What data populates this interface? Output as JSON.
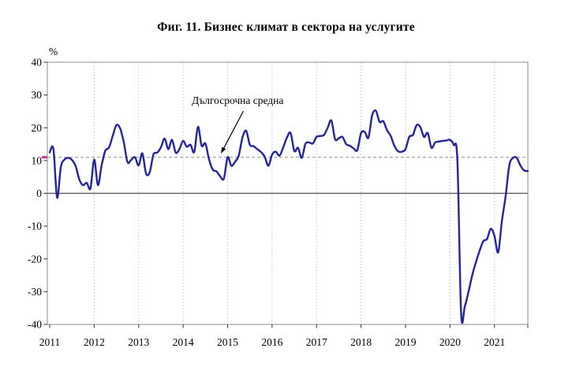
{
  "chart_data": {
    "type": "line",
    "title": "Фиг. 11. Бизнес климат в сектора на услугите",
    "ylabel": "%",
    "annotation": "Дългосрочна средна",
    "x_tick_labels": [
      "2011",
      "2012",
      "2013",
      "2014",
      "2015",
      "2016",
      "2017",
      "2018",
      "2019",
      "2020",
      "2021"
    ],
    "y_ticks": [
      40,
      30,
      20,
      10,
      0,
      -10,
      -20,
      -30,
      -40
    ],
    "ylim": [
      -40,
      40
    ],
    "x_frequency": "monthly",
    "x_range": {
      "start": "2011-01",
      "end": "2021-10"
    },
    "long_term_average": 11,
    "grid": {
      "vertical": "dotted",
      "horizontal": "none"
    },
    "values": [
      12.5,
      13.5,
      -1.3,
      8.0,
      10.3,
      10.8,
      10.2,
      8.3,
      4.2,
      2.5,
      3.2,
      1.5,
      10.3,
      2.5,
      8.5,
      13.0,
      14.0,
      17.5,
      20.8,
      19.8,
      15.5,
      9.5,
      10.2,
      11.0,
      8.5,
      12.2,
      6.0,
      6.5,
      11.9,
      12.4,
      14.0,
      16.7,
      13.5,
      16.3,
      12.4,
      13.5,
      16.0,
      14.2,
      14.8,
      12.6,
      20.3,
      14.5,
      15.2,
      10.3,
      7.2,
      6.7,
      5.2,
      4.5,
      11.0,
      8.4,
      9.6,
      11.5,
      17.0,
      19.1,
      14.8,
      14.4,
      13.5,
      12.6,
      11.2,
      8.4,
      11.8,
      12.7,
      11.5,
      14.0,
      17.0,
      18.4,
      12.9,
      13.9,
      10.8,
      15.1,
      15.5,
      15.2,
      17.2,
      17.5,
      17.8,
      20.0,
      22.2,
      16.5,
      16.8,
      17.2,
      15.0,
      14.5,
      13.7,
      13.2,
      18.4,
      18.7,
      17.0,
      23.8,
      25.2,
      21.8,
      22.0,
      19.3,
      17.5,
      14.5,
      12.8,
      12.7,
      13.5,
      17.2,
      17.8,
      20.8,
      20.2,
      17.2,
      18.4,
      13.9,
      15.5,
      15.8,
      16.0,
      16.1,
      16.3,
      14.8,
      10.0,
      -36.5,
      -34.5,
      -30.0,
      -25.0,
      -21.0,
      -17.5,
      -14.6,
      -13.9,
      -10.8,
      -13.0,
      -18.0,
      -8.5,
      -1.0,
      8.5,
      10.8,
      10.8,
      8.5,
      7.0,
      6.8
    ],
    "colors": {
      "line": "#24249b",
      "average_line": "#aaaaaa",
      "average_start_marker": "#cc3399",
      "zero_line": "#4d4d4d",
      "gridline": "#c4c4c4",
      "plot_border": "#8c8c8c",
      "tick": "#333333",
      "text": "#000000"
    }
  }
}
